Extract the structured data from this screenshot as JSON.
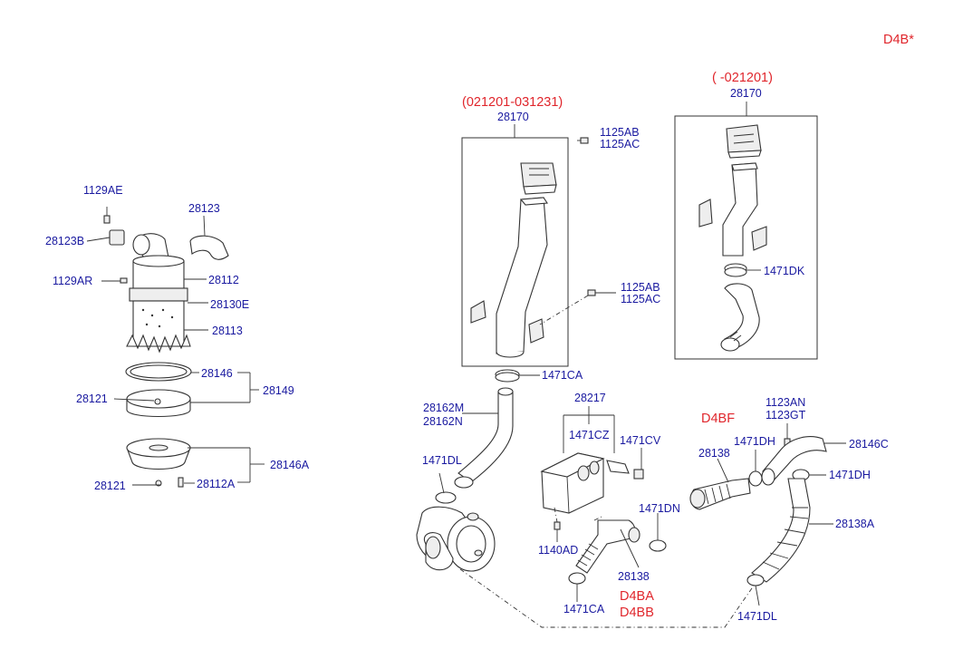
{
  "engine_code": "D4B*",
  "variants": {
    "left_box_period": "(021201-031231)",
    "right_box_period": "( -021201)",
    "d4bf": "D4BF",
    "d4ba": "D4BA",
    "d4bb": "D4BB"
  },
  "parts": {
    "p1129AE": "1129AE",
    "p28123": "28123",
    "p28123B": "28123B",
    "p28112": "28112",
    "p1129AR": "1129AR",
    "p28130E": "28130E",
    "p28113": "28113",
    "p28146": "28146",
    "p28149": "28149",
    "p28121a": "28121",
    "p28146A": "28146A",
    "p28121b": "28121",
    "p28112A": "28112A",
    "p28170a": "28170",
    "p1125AB_1": "1125AB",
    "p1125AC_1": "1125AC",
    "p1125AB_2": "1125AB",
    "p1125AC_2": "1125AC",
    "p1471CA_1": "1471CA",
    "p28162M": "28162M",
    "p28162N": "28162N",
    "p1471DL_1": "1471DL",
    "p28217": "28217",
    "p1471CZ": "1471CZ",
    "p1471CV": "1471CV",
    "p1140AD": "1140AD",
    "p1471DN": "1471DN",
    "p28138_1": "28138",
    "p1471CA_2": "1471CA",
    "p28170b": "28170",
    "p1471DK": "1471DK",
    "p1123AN": "1123AN",
    "p1123GT": "1123GT",
    "p1471DH_1": "1471DH",
    "p28146C": "28146C",
    "p28138_2": "28138",
    "p1471DH_2": "1471DH",
    "p28138A": "28138A",
    "p1471DL_2": "1471DL"
  }
}
